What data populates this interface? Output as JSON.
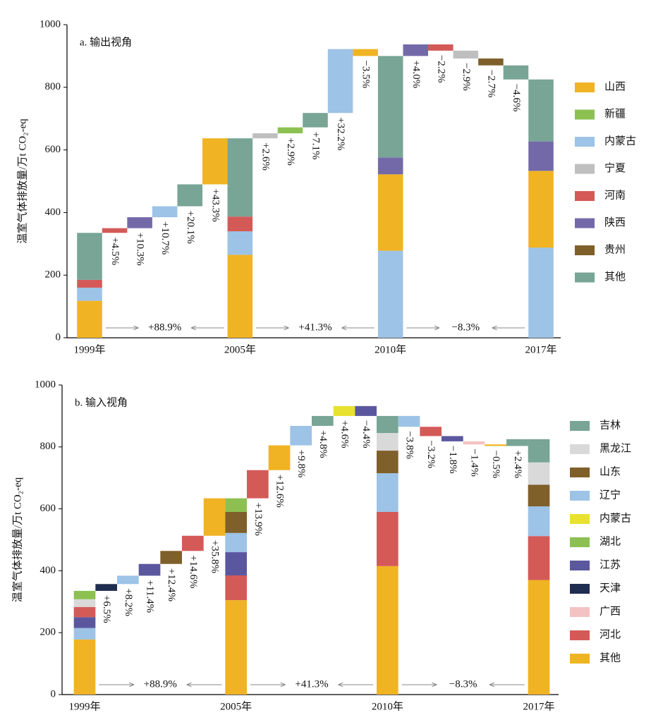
{
  "chart_data": [
    {
      "type": "waterfall",
      "title": "a. 输出视角",
      "y_label": "温室气体排放量/万t CO₂-eq",
      "ylim": [
        0,
        1000
      ],
      "yticks": [
        0,
        200,
        400,
        600,
        800,
        1000
      ],
      "legend_position": "right",
      "series": [
        {
          "name": "山西",
          "color": "#f0b323"
        },
        {
          "name": "新疆",
          "color": "#8cc152"
        },
        {
          "name": "内蒙古",
          "color": "#9dc3e6"
        },
        {
          "name": "宁夏",
          "color": "#bfbfbf"
        },
        {
          "name": "河南",
          "color": "#d45a58"
        },
        {
          "name": "陕西",
          "color": "#7469a8"
        },
        {
          "name": "贵州",
          "color": "#7f5f2a"
        },
        {
          "name": "其他",
          "color": "#78a595"
        }
      ],
      "bars": [
        {
          "category": "1999年",
          "segments": [
            {
              "name": "山西",
              "value": 118
            },
            {
              "name": "内蒙古",
              "value": 42
            },
            {
              "name": "河南",
              "value": 25
            },
            {
              "name": "其他",
              "value": 150
            }
          ]
        },
        {
          "name": "河南",
          "value": 15,
          "label": "+4.5%"
        },
        {
          "name": "陕西",
          "value": 35,
          "label": "+10.3%"
        },
        {
          "name": "内蒙古",
          "value": 35,
          "label": "+10.7%"
        },
        {
          "name": "其他",
          "value": 70,
          "label": "+20.1%"
        },
        {
          "name": "山西",
          "value": 147,
          "label": "+43.3%"
        },
        {
          "category": "2005年",
          "segments": [
            {
              "name": "山西",
              "value": 265
            },
            {
              "name": "内蒙古",
              "value": 75
            },
            {
              "name": "河南",
              "value": 47
            },
            {
              "name": "其他",
              "value": 250
            }
          ]
        },
        {
          "name": "宁夏",
          "value": 16,
          "label": "+2.6%"
        },
        {
          "name": "新疆",
          "value": 19,
          "label": "+2.9%"
        },
        {
          "name": "其他",
          "value": 46,
          "label": "+7.1%"
        },
        {
          "name": "内蒙古",
          "value": 204,
          "label": "+32.2%"
        },
        {
          "name": "山西",
          "value": -22,
          "label": "−3.5%"
        },
        {
          "category": "2010年",
          "segments": [
            {
              "name": "内蒙古",
              "value": 278
            },
            {
              "name": "山西",
              "value": 244
            },
            {
              "name": "陕西",
              "value": 54
            },
            {
              "name": "其他",
              "value": 324
            }
          ]
        },
        {
          "name": "陕西",
          "value": 37,
          "label": "+4.0%"
        },
        {
          "name": "河南",
          "value": -20,
          "label": "−2.2%"
        },
        {
          "name": "宁夏",
          "value": -25,
          "label": "−2.9%"
        },
        {
          "name": "贵州",
          "value": -22,
          "label": "−2.7%"
        },
        {
          "name": "其他",
          "value": -45,
          "label": "−4.6%"
        },
        {
          "category": "2017年",
          "segments": [
            {
              "name": "内蒙古",
              "value": 288
            },
            {
              "name": "山西",
              "value": 245
            },
            {
              "name": "陕西",
              "value": 94
            },
            {
              "name": "其他",
              "value": 198
            }
          ]
        }
      ],
      "annotations": [
        "+88.9%",
        "+41.3%",
        "−8.3%"
      ]
    },
    {
      "type": "waterfall",
      "title": "b. 输入视角",
      "y_label": "温室气体排放量/万t CO₂-eq",
      "ylim": [
        0,
        1000
      ],
      "yticks": [
        0,
        200,
        400,
        600,
        800,
        1000
      ],
      "legend_position": "right",
      "series": [
        {
          "name": "吉林",
          "color": "#78a595"
        },
        {
          "name": "黑龙江",
          "color": "#d9d9d9"
        },
        {
          "name": "山东",
          "color": "#7f5f2a"
        },
        {
          "name": "辽宁",
          "color": "#9dc3e6"
        },
        {
          "name": "内蒙古",
          "color": "#e8e22e"
        },
        {
          "name": "湖北",
          "color": "#8cc152"
        },
        {
          "name": "江苏",
          "color": "#5b579f"
        },
        {
          "name": "天津",
          "color": "#1f2d50"
        },
        {
          "name": "广西",
          "color": "#f4c2c2"
        },
        {
          "name": "河北",
          "color": "#d45a58"
        },
        {
          "name": "其他",
          "color": "#f0b323"
        }
      ],
      "bars": [
        {
          "category": "1999年",
          "segments": [
            {
              "name": "其他",
              "value": 178
            },
            {
              "name": "辽宁",
              "value": 37
            },
            {
              "name": "江苏",
              "value": 35
            },
            {
              "name": "河北",
              "value": 33
            },
            {
              "name": "黑龙江",
              "value": 25
            },
            {
              "name": "湖北",
              "value": 27
            }
          ]
        },
        {
          "name": "天津",
          "value": 22,
          "label": "+6.5%"
        },
        {
          "name": "辽宁",
          "value": 27,
          "label": "+8.2%"
        },
        {
          "name": "江苏",
          "value": 38,
          "label": "+11.4%"
        },
        {
          "name": "山东",
          "value": 42,
          "label": "+12.4%"
        },
        {
          "name": "河北",
          "value": 49,
          "label": "+14.6%"
        },
        {
          "name": "其他",
          "value": 121,
          "label": "+35.8%"
        },
        {
          "category": "2005年",
          "segments": [
            {
              "name": "其他",
              "value": 305
            },
            {
              "name": "河北",
              "value": 80
            },
            {
              "name": "江苏",
              "value": 75
            },
            {
              "name": "辽宁",
              "value": 62
            },
            {
              "name": "山东",
              "value": 68
            },
            {
              "name": "湖北",
              "value": 44
            }
          ]
        },
        {
          "name": "河北",
          "value": 91,
          "label": "+13.9%"
        },
        {
          "name": "其他",
          "value": 80,
          "label": "+12.6%"
        },
        {
          "name": "辽宁",
          "value": 63,
          "label": "+9.8%"
        },
        {
          "name": "吉林",
          "value": 32,
          "label": "+4.8%"
        },
        {
          "name": "内蒙古",
          "value": 32,
          "label": "+4.6%"
        },
        {
          "name": "江苏",
          "value": -32,
          "label": "−4.4%"
        },
        {
          "category": "2010年",
          "segments": [
            {
              "name": "其他",
              "value": 415
            },
            {
              "name": "河北",
              "value": 175
            },
            {
              "name": "辽宁",
              "value": 125
            },
            {
              "name": "山东",
              "value": 73
            },
            {
              "name": "黑龙江",
              "value": 57
            },
            {
              "name": "吉林",
              "value": 55
            }
          ]
        },
        {
          "name": "辽宁",
          "value": -35,
          "label": "−3.8%"
        },
        {
          "name": "河北",
          "value": -30,
          "label": "−3.2%"
        },
        {
          "name": "江苏",
          "value": -17,
          "label": "−1.8%"
        },
        {
          "name": "广西",
          "value": -10,
          "label": "−1.4%"
        },
        {
          "name": "其他",
          "value": -5,
          "label": "−0.5%"
        },
        {
          "name": "吉林",
          "value": 22,
          "label": "+2.4%"
        },
        {
          "category": "2017年",
          "segments": [
            {
              "name": "其他",
              "value": 370
            },
            {
              "name": "河北",
              "value": 142
            },
            {
              "name": "辽宁",
              "value": 96
            },
            {
              "name": "山东",
              "value": 70
            },
            {
              "name": "黑龙江",
              "value": 72
            },
            {
              "name": "吉林",
              "value": 75
            }
          ]
        }
      ],
      "annotations": [
        "+88.9%",
        "+41.3%",
        "−8.3%"
      ]
    }
  ]
}
